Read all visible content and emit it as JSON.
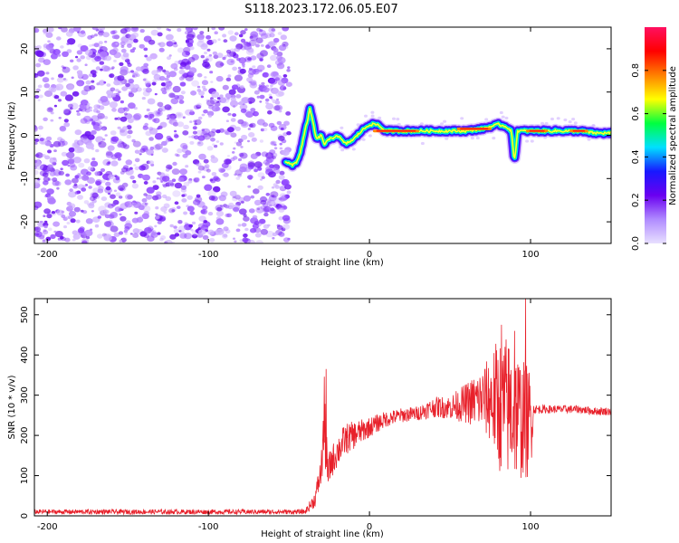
{
  "title": "S118.2023.172.06.05.E07",
  "colors": {
    "snr_line": "#e8202a",
    "axis": "#000000",
    "scatter_palette": [
      "#b07cff",
      "#8a3cff",
      "#6a10f0",
      "#cfb2ff"
    ]
  },
  "chart_data": [
    {
      "type": "heatmap",
      "title": "",
      "xlabel": "Height of straight line (km)",
      "ylabel": "Frequency (Hz)",
      "xlim": [
        -208,
        150
      ],
      "ylim": [
        -25,
        25
      ],
      "xticks": [
        -200,
        -100,
        0,
        100
      ],
      "yticks": [
        -20,
        -10,
        0,
        10,
        20
      ],
      "noise_region_x": [
        -208,
        -52
      ],
      "ridge": {
        "x": [
          -52,
          -48,
          -45,
          -43,
          -40,
          -37,
          -35,
          -33,
          -30,
          -28,
          -25,
          -20,
          -15,
          -10,
          -5,
          0,
          5,
          10,
          20,
          30,
          40,
          50,
          60,
          70,
          80,
          85,
          88,
          90,
          92,
          95,
          100,
          110,
          120,
          130,
          140,
          150
        ],
        "y": [
          -6,
          -7,
          -6,
          -4,
          1,
          6,
          3,
          -1,
          0,
          -2,
          -1,
          0,
          -2,
          -1,
          1,
          2.5,
          2.5,
          1,
          1,
          1,
          1,
          1,
          1,
          1.5,
          2.5,
          2,
          1,
          -6,
          1,
          1,
          1,
          1,
          1,
          1,
          0.5,
          0.5
        ]
      },
      "hot_segments": [
        {
          "x": [
            3,
            30
          ],
          "y": 1
        },
        {
          "x": [
            55,
            75
          ],
          "y": 1.5
        },
        {
          "x": [
            98,
            110
          ],
          "y": 1
        },
        {
          "x": [
            125,
            135
          ],
          "y": 1
        }
      ],
      "colorbar": {
        "label": "Normalized spectral amplitude",
        "range": [
          0,
          1
        ],
        "ticks": [
          "0.0",
          "0.2",
          "0.4",
          "0.6",
          "0.8"
        ],
        "tick_values": [
          0,
          0.2,
          0.4,
          0.6,
          0.8
        ],
        "stops": [
          "#e8e0ff",
          "#b08bff",
          "#6a00f0",
          "#1818ff",
          "#00e0ff",
          "#00ff40",
          "#ffff00",
          "#ff8000",
          "#ff0000",
          "#ff1060"
        ]
      }
    },
    {
      "type": "line",
      "title": "",
      "xlabel": "Height of straight line (km)",
      "ylabel": "SNR (10 * v/v)",
      "xlim": [
        -208,
        150
      ],
      "ylim": [
        0,
        540
      ],
      "xticks": [
        -200,
        -100,
        0,
        100
      ],
      "yticks": [
        0,
        100,
        200,
        300,
        400,
        500
      ],
      "envelope": {
        "x": [
          -208,
          -40,
          -34,
          -30,
          -28,
          -26,
          -24,
          -20,
          -15,
          -10,
          -5,
          0,
          10,
          20,
          30,
          40,
          50,
          60,
          70,
          75,
          80,
          85,
          90,
          95,
          100,
          102,
          110,
          120,
          130,
          140,
          150
        ],
        "mean": [
          10,
          10,
          40,
          110,
          240,
          100,
          130,
          160,
          190,
          200,
          210,
          220,
          240,
          250,
          255,
          270,
          270,
          280,
          290,
          290,
          280,
          270,
          260,
          240,
          230,
          265,
          265,
          265,
          265,
          260,
          260
        ],
        "spread": [
          6,
          6,
          20,
          40,
          110,
          50,
          40,
          40,
          40,
          35,
          30,
          25,
          20,
          18,
          18,
          25,
          30,
          50,
          80,
          110,
          170,
          180,
          170,
          150,
          140,
          12,
          10,
          10,
          10,
          10,
          10
        ]
      },
      "peaks": [
        {
          "x": -27,
          "y": 365
        },
        {
          "x": 82,
          "y": 475
        },
        {
          "x": 90,
          "y": 460
        },
        {
          "x": 97,
          "y": 540
        }
      ]
    }
  ]
}
